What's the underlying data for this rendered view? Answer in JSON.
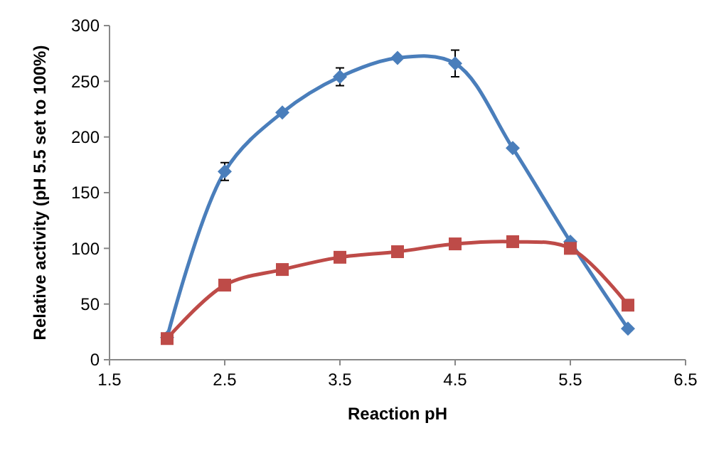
{
  "chart_data": {
    "type": "line",
    "xlabel": "Reaction pH",
    "ylabel": "Relative activity (pH 5.5 set to 100%)",
    "x": [
      2,
      2.5,
      3,
      3.5,
      4,
      4.5,
      5,
      5.5,
      6
    ],
    "series": [
      {
        "color": "#4a7ebb",
        "marker": "diamond",
        "values": [
          20,
          169,
          222,
          254,
          271,
          266,
          190,
          106,
          28
        ],
        "errors": [
          null,
          8,
          null,
          8,
          null,
          12,
          null,
          null,
          null
        ]
      },
      {
        "color": "#be4b48",
        "marker": "square",
        "values": [
          19,
          67,
          81,
          92,
          97,
          104,
          106,
          100,
          49
        ]
      }
    ],
    "xlim": [
      1.5,
      6.5
    ],
    "xticks": [
      1.5,
      2.5,
      3.5,
      4.5,
      5.5,
      6.5
    ],
    "ylim": [
      0,
      300
    ],
    "yticks": [
      0,
      50,
      100,
      150,
      200,
      250,
      300
    ],
    "grid": false
  }
}
